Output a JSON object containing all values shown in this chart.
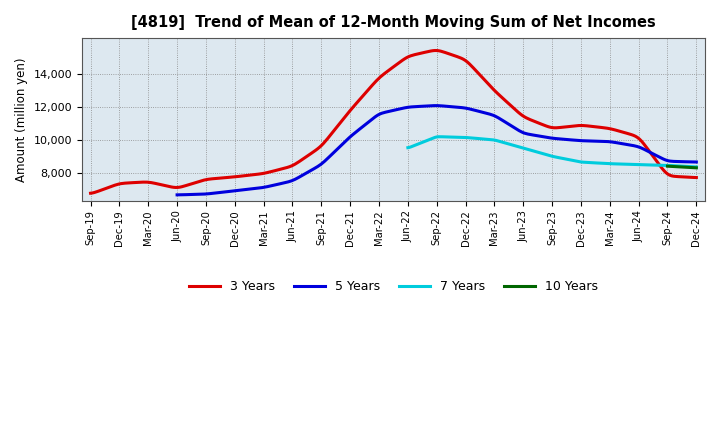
{
  "title": "[4819]  Trend of Mean of 12-Month Moving Sum of Net Incomes",
  "ylabel": "Amount (million yen)",
  "background_color": "#ffffff",
  "plot_bg_color": "#dde8f0",
  "grid_color": "#aaaaaa",
  "series": {
    "3 Years": {
      "color": "#dd0000",
      "x": [
        "Sep-19",
        "Dec-19",
        "Mar-20",
        "Jun-20",
        "Sep-20",
        "Dec-20",
        "Mar-21",
        "Jun-21",
        "Sep-21",
        "Dec-21",
        "Mar-22",
        "Jun-22",
        "Sep-22",
        "Dec-22",
        "Mar-23",
        "Jun-23",
        "Sep-23",
        "Dec-23",
        "Mar-24",
        "Jun-24",
        "Sep-24",
        "Dec-24"
      ],
      "y": [
        6700,
        7350,
        7450,
        7050,
        7600,
        7750,
        7950,
        8400,
        9600,
        11800,
        13800,
        15100,
        15500,
        14900,
        13000,
        11400,
        10700,
        10900,
        10700,
        10200,
        7800,
        7700
      ]
    },
    "5 Years": {
      "color": "#0000dd",
      "x": [
        "Jun-20",
        "Sep-20",
        "Dec-20",
        "Mar-21",
        "Jun-21",
        "Sep-21",
        "Dec-21",
        "Mar-22",
        "Jun-22",
        "Sep-22",
        "Dec-22",
        "Mar-23",
        "Jun-23",
        "Sep-23",
        "Dec-23",
        "Mar-24",
        "Jun-24",
        "Sep-24",
        "Dec-24"
      ],
      "y": [
        6650,
        6700,
        6900,
        7100,
        7500,
        8500,
        10200,
        11600,
        12000,
        12100,
        11950,
        11500,
        10400,
        10100,
        9950,
        9900,
        9600,
        8700,
        8650
      ]
    },
    "7 Years": {
      "color": "#00ccdd",
      "x": [
        "Jun-22",
        "Sep-22",
        "Dec-22",
        "Mar-23",
        "Jun-23",
        "Sep-23",
        "Dec-23",
        "Mar-24",
        "Jun-24",
        "Sep-24",
        "Dec-24"
      ],
      "y": [
        9500,
        10200,
        10150,
        10000,
        9500,
        9000,
        8650,
        8550,
        8500,
        8450,
        8350
      ]
    },
    "10 Years": {
      "color": "#006600",
      "x": [
        "Sep-24",
        "Dec-24"
      ],
      "y": [
        8400,
        8300
      ]
    }
  },
  "xticks": [
    "Sep-19",
    "Dec-19",
    "Mar-20",
    "Jun-20",
    "Sep-20",
    "Dec-20",
    "Mar-21",
    "Jun-21",
    "Sep-21",
    "Dec-21",
    "Mar-22",
    "Jun-22",
    "Sep-22",
    "Dec-22",
    "Mar-23",
    "Jun-23",
    "Sep-23",
    "Dec-23",
    "Mar-24",
    "Jun-24",
    "Sep-24",
    "Dec-24"
  ],
  "yticks": [
    8000,
    10000,
    12000,
    14000
  ],
  "ylim": [
    6300,
    16200
  ],
  "legend_items": [
    {
      "label": "3 Years",
      "color": "#dd0000"
    },
    {
      "label": "5 Years",
      "color": "#0000dd"
    },
    {
      "label": "7 Years",
      "color": "#00ccdd"
    },
    {
      "label": "10 Years",
      "color": "#006600"
    }
  ]
}
